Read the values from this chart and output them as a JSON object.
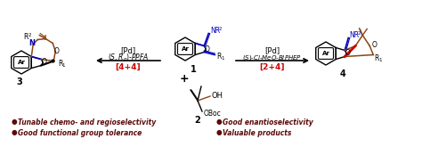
{
  "background_color": "#ffffff",
  "figsize": [
    4.74,
    1.65
  ],
  "dpi": 100,
  "arrow_color": "#000000",
  "red_color": "#cc0000",
  "blue_color": "#0000bb",
  "brown_color": "#8B4513",
  "dark_red": "#5c0a0a",
  "black": "#000000",
  "label_pd_left": "[Pd]",
  "label_ligand_left": "(S,R$_p$)-PPFA",
  "label_bracket_left": "[4+4]",
  "label_pd_right": "[Pd]",
  "label_ligand_right": "(S)-Cl-MeO-BIPHEP",
  "label_bracket_right": "[2+4]",
  "bullet_items": [
    [
      "Tunable chemo- and regioselectivity",
      "Good enantioselectivity"
    ],
    [
      "Good functional group tolerance",
      "Valuable products"
    ]
  ],
  "compound_labels": [
    "3",
    "1",
    "2",
    "4"
  ]
}
